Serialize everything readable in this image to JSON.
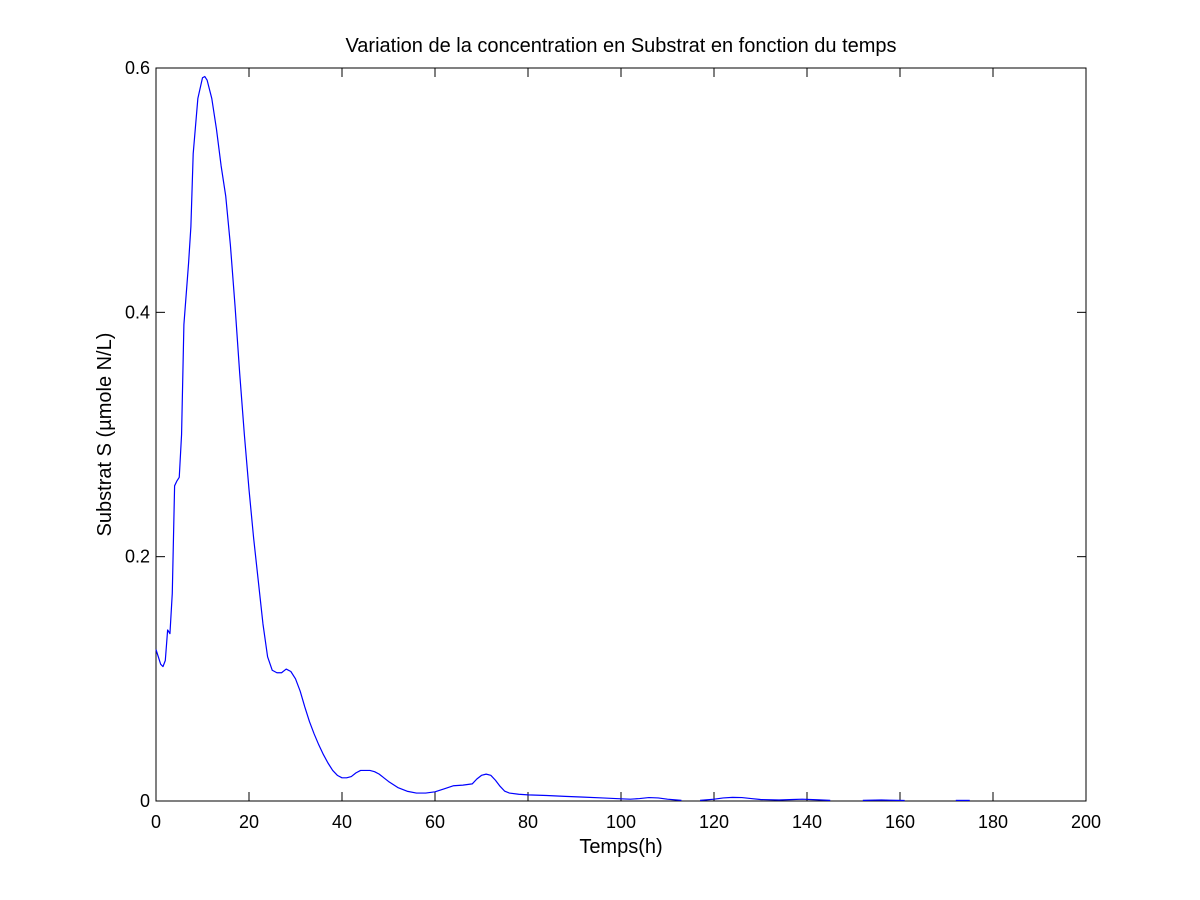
{
  "chart_data": {
    "type": "line",
    "title": "Variation de la concentration en Substrat en fonction du temps",
    "xlabel": "Temps(h)",
    "ylabel": "Substrat S (µmole N/L)",
    "xlim": [
      0,
      200
    ],
    "ylim": [
      0,
      0.6
    ],
    "xticks": [
      0,
      20,
      40,
      60,
      80,
      100,
      120,
      140,
      160,
      180,
      200
    ],
    "yticks": [
      0,
      0.2,
      0.4,
      0.6
    ],
    "xtick_labels": [
      "0",
      "20",
      "40",
      "60",
      "80",
      "100",
      "120",
      "140",
      "160",
      "180",
      "200"
    ],
    "ytick_labels": [
      "0",
      "0.2",
      "0.4",
      "0.6"
    ],
    "grid": false,
    "line_color": "#0000ff",
    "series": [
      {
        "segments": [
          [
            [
              0,
              0.124
            ],
            [
              0.5,
              0.118
            ],
            [
              1,
              0.112
            ],
            [
              1.5,
              0.11
            ],
            [
              2,
              0.115
            ],
            [
              2.5,
              0.14
            ],
            [
              3,
              0.137
            ],
            [
              3.5,
              0.17
            ],
            [
              4,
              0.258
            ],
            [
              4.5,
              0.262
            ],
            [
              5,
              0.265
            ],
            [
              5.5,
              0.3
            ],
            [
              6,
              0.39
            ],
            [
              7,
              0.44
            ],
            [
              7.5,
              0.47
            ],
            [
              8,
              0.53
            ],
            [
              9,
              0.575
            ],
            [
              10,
              0.592
            ],
            [
              10.5,
              0.593
            ],
            [
              11,
              0.59
            ],
            [
              12,
              0.575
            ],
            [
              13,
              0.55
            ],
            [
              14,
              0.52
            ],
            [
              15,
              0.495
            ],
            [
              16,
              0.455
            ],
            [
              17,
              0.405
            ],
            [
              18,
              0.35
            ],
            [
              19,
              0.3
            ],
            [
              20,
              0.255
            ],
            [
              21,
              0.215
            ],
            [
              22,
              0.18
            ],
            [
              23,
              0.145
            ],
            [
              24,
              0.118
            ],
            [
              25,
              0.107
            ],
            [
              26,
              0.105
            ],
            [
              27,
              0.105
            ],
            [
              28,
              0.108
            ],
            [
              29,
              0.106
            ],
            [
              30,
              0.1
            ],
            [
              31,
              0.09
            ],
            [
              32,
              0.077
            ],
            [
              33,
              0.065
            ],
            [
              34,
              0.055
            ],
            [
              35,
              0.046
            ],
            [
              36,
              0.038
            ],
            [
              37,
              0.031
            ],
            [
              38,
              0.025
            ],
            [
              39,
              0.021
            ],
            [
              40,
              0.019
            ],
            [
              41,
              0.019
            ],
            [
              42,
              0.02
            ],
            [
              43,
              0.023
            ],
            [
              44,
              0.025
            ],
            [
              46,
              0.025
            ],
            [
              47,
              0.024
            ],
            [
              48,
              0.022
            ],
            [
              49,
              0.019
            ],
            [
              50,
              0.016
            ],
            [
              52,
              0.011
            ],
            [
              54,
              0.008
            ],
            [
              56,
              0.0065
            ],
            [
              58,
              0.0065
            ],
            [
              60,
              0.0075
            ],
            [
              62,
              0.01
            ],
            [
              64,
              0.0125
            ],
            [
              66,
              0.013
            ],
            [
              68,
              0.014
            ],
            [
              69,
              0.018
            ],
            [
              70,
              0.021
            ],
            [
              71,
              0.022
            ],
            [
              72,
              0.021
            ],
            [
              73,
              0.017
            ],
            [
              74,
              0.012
            ],
            [
              75,
              0.008
            ],
            [
              76,
              0.0065
            ],
            [
              78,
              0.0055
            ],
            [
              80,
              0.005
            ],
            [
              84,
              0.0045
            ],
            [
              88,
              0.0038
            ],
            [
              92,
              0.0032
            ],
            [
              96,
              0.0025
            ],
            [
              100,
              0.0018
            ],
            [
              102,
              0.0015
            ],
            [
              104,
              0.002
            ],
            [
              106,
              0.0028
            ],
            [
              108,
              0.0025
            ],
            [
              110,
              0.0015
            ],
            [
              112,
              0.0008
            ],
            [
              113,
              0.0005
            ]
          ],
          [
            [
              117,
              0.0005
            ],
            [
              118,
              0.0008
            ],
            [
              120,
              0.0015
            ],
            [
              122,
              0.0025
            ],
            [
              124,
              0.003
            ],
            [
              126,
              0.0028
            ],
            [
              128,
              0.002
            ],
            [
              130,
              0.0012
            ],
            [
              134,
              0.0008
            ],
            [
              137,
              0.0012
            ],
            [
              139,
              0.0015
            ],
            [
              142,
              0.001
            ],
            [
              145,
              0.0005
            ]
          ],
          [
            [
              152,
              0.0005
            ],
            [
              156,
              0.0008
            ],
            [
              158,
              0.0006
            ],
            [
              161,
              0.0004
            ]
          ],
          [
            [
              172,
              0.0005
            ],
            [
              175,
              0.0005
            ]
          ]
        ]
      }
    ]
  }
}
